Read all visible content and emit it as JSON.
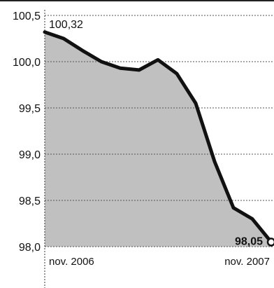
{
  "chart_data": {
    "type": "area",
    "title": "",
    "xlabel": "",
    "ylabel": "",
    "ylim": [
      98.0,
      100.5
    ],
    "yticks": [
      {
        "value": 100.5,
        "label": "100,5"
      },
      {
        "value": 100.0,
        "label": "100,0"
      },
      {
        "value": 99.5,
        "label": "99,5"
      },
      {
        "value": 99.0,
        "label": "99,0"
      },
      {
        "value": 98.5,
        "label": "98,5"
      },
      {
        "value": 98.0,
        "label": "98,0"
      }
    ],
    "x_tick_labels": [
      {
        "index": 0,
        "label": "nov. 2006"
      },
      {
        "index": 12,
        "label": "nov. 2007"
      }
    ],
    "series": [
      {
        "values": [
          100.32,
          100.25,
          100.12,
          100.0,
          99.93,
          99.91,
          100.02,
          99.87,
          99.55,
          98.92,
          98.42,
          98.3,
          98.05
        ]
      }
    ],
    "annotations": [
      {
        "index": 0,
        "label": "100,32"
      },
      {
        "index": 12,
        "label": "98,05"
      }
    ],
    "grid": true,
    "colors": {
      "line": "#111111",
      "fill": "#b5b5b5",
      "grid": "#555555"
    }
  }
}
